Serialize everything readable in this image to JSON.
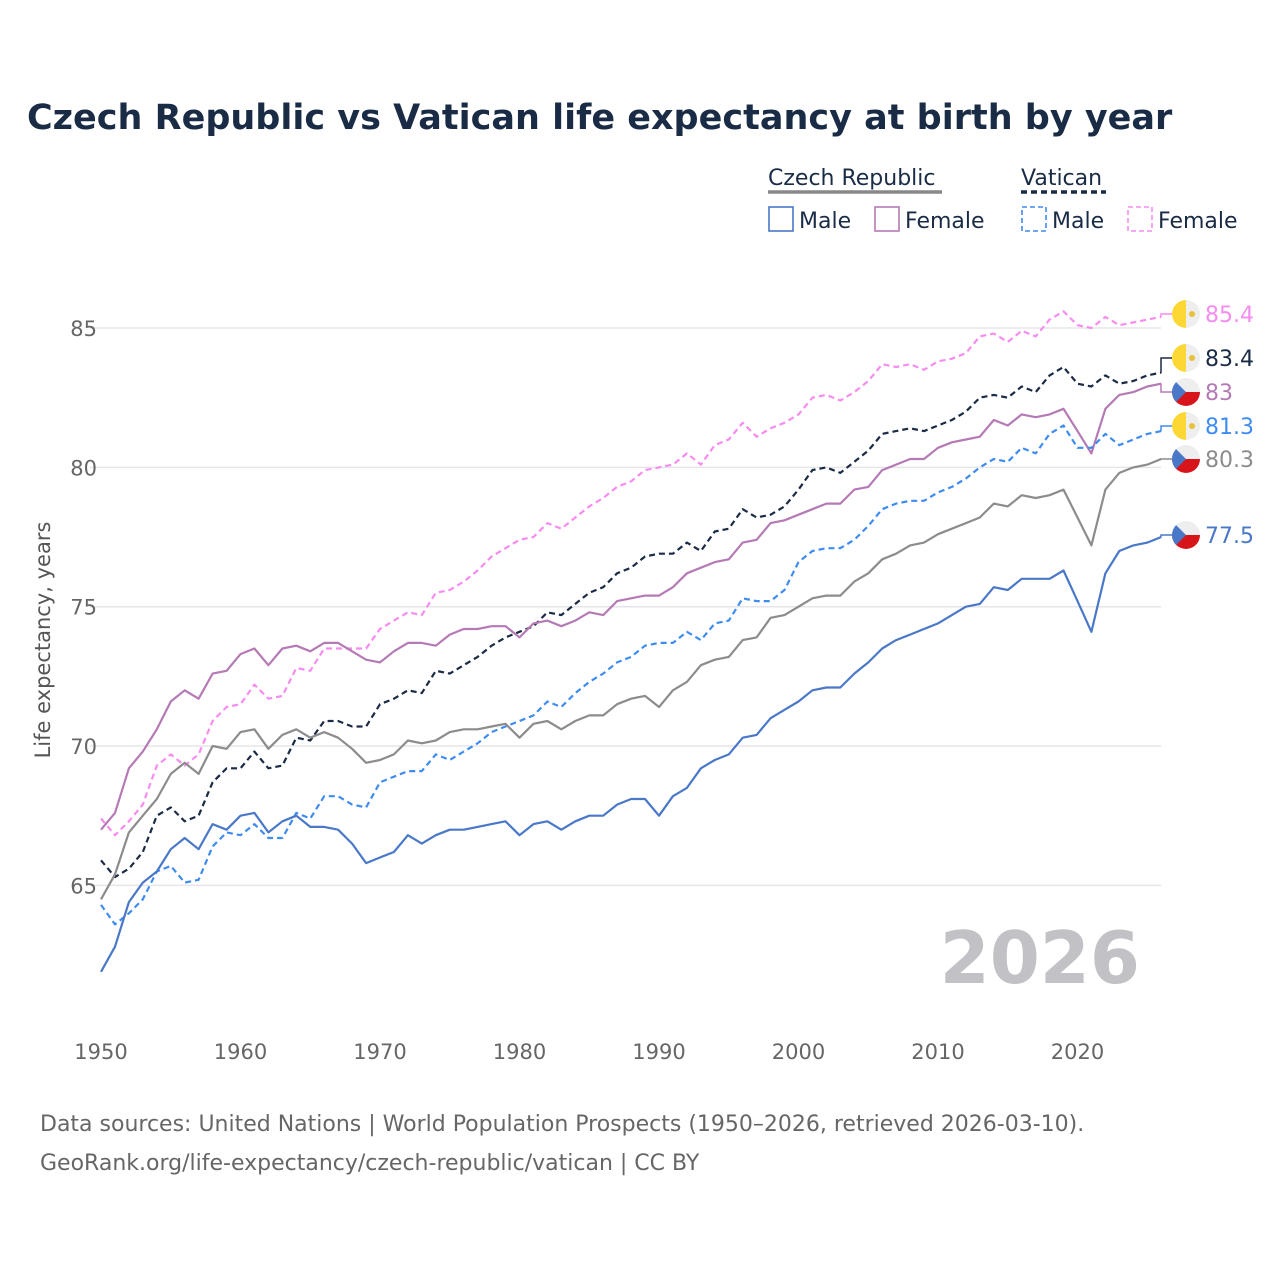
{
  "chart_data": {
    "type": "line",
    "title": "Czech Republic vs Vatican life expectancy at birth by year",
    "xlabel": "",
    "ylabel": "Life expectancy, years",
    "xlim": [
      1950,
      2026
    ],
    "ylim": [
      60.5,
      87
    ],
    "yticks": [
      65,
      70,
      75,
      80,
      85
    ],
    "xticks": [
      1950,
      1960,
      1970,
      1980,
      1990,
      2000,
      2010,
      2020
    ],
    "grid": true,
    "current_year_label": "2026",
    "legend": {
      "placement": "top-right",
      "groups": [
        {
          "name": "Czech Republic",
          "color": "#888888",
          "dash": false,
          "items": [
            {
              "label": "Male",
              "color": "#4a78c8"
            },
            {
              "label": "Female",
              "color": "#b57ab5"
            }
          ]
        },
        {
          "name": "Vatican",
          "color": "#1a2b45",
          "dash": true,
          "items": [
            {
              "label": "Male",
              "color": "#3f8cf0"
            },
            {
              "label": "Female",
              "color": "#f78cf0"
            }
          ]
        }
      ]
    },
    "start_year": 1950,
    "series": [
      {
        "name": "Vatican Female",
        "country": "vatican",
        "color": "#f78cf0",
        "dash": true,
        "end_label": "85.4",
        "values": [
          67.4,
          66.8,
          67.3,
          67.9,
          69.3,
          69.7,
          69.3,
          69.7,
          70.9,
          71.4,
          71.5,
          72.2,
          71.7,
          71.8,
          72.8,
          72.7,
          73.5,
          73.5,
          73.5,
          73.5,
          74.2,
          74.5,
          74.8,
          74.7,
          75.5,
          75.6,
          75.9,
          76.3,
          76.8,
          77.1,
          77.4,
          77.5,
          78.0,
          77.8,
          78.2,
          78.6,
          78.9,
          79.3,
          79.5,
          79.9,
          80.0,
          80.1,
          80.5,
          80.1,
          80.8,
          81.0,
          81.6,
          81.1,
          81.4,
          81.6,
          81.9,
          82.5,
          82.6,
          82.4,
          82.7,
          83.1,
          83.7,
          83.6,
          83.7,
          83.5,
          83.8,
          83.9,
          84.1,
          84.7,
          84.8,
          84.5,
          84.9,
          84.7,
          85.3,
          85.6,
          85.1,
          85.0,
          85.4,
          85.1,
          85.2,
          85.3,
          85.4
        ]
      },
      {
        "name": "Vatican",
        "country": "vatican",
        "color": "#1a2b45",
        "dash": true,
        "end_label": "83.4",
        "values": [
          65.9,
          65.3,
          65.6,
          66.2,
          67.5,
          67.8,
          67.3,
          67.5,
          68.7,
          69.2,
          69.2,
          69.8,
          69.2,
          69.3,
          70.3,
          70.2,
          70.9,
          70.9,
          70.7,
          70.7,
          71.5,
          71.7,
          72.0,
          71.9,
          72.7,
          72.6,
          72.9,
          73.2,
          73.6,
          73.9,
          74.1,
          74.3,
          74.8,
          74.7,
          75.1,
          75.5,
          75.7,
          76.2,
          76.4,
          76.8,
          76.9,
          76.9,
          77.3,
          77.0,
          77.7,
          77.8,
          78.5,
          78.2,
          78.3,
          78.6,
          79.2,
          79.9,
          80.0,
          79.8,
          80.2,
          80.6,
          81.2,
          81.3,
          81.4,
          81.3,
          81.5,
          81.7,
          82.0,
          82.5,
          82.6,
          82.5,
          82.9,
          82.7,
          83.3,
          83.6,
          83.0,
          82.9,
          83.3,
          83.0,
          83.1,
          83.3,
          83.4
        ]
      },
      {
        "name": "Czech Republic Female",
        "country": "czech",
        "color": "#b57ab5",
        "dash": false,
        "end_label": "83",
        "values": [
          67.0,
          67.6,
          69.2,
          69.8,
          70.6,
          71.6,
          72.0,
          71.7,
          72.6,
          72.7,
          73.3,
          73.5,
          72.9,
          73.5,
          73.6,
          73.4,
          73.7,
          73.7,
          73.4,
          73.1,
          73.0,
          73.4,
          73.7,
          73.7,
          73.6,
          74.0,
          74.2,
          74.2,
          74.3,
          74.3,
          73.9,
          74.4,
          74.5,
          74.3,
          74.5,
          74.8,
          74.7,
          75.2,
          75.3,
          75.4,
          75.4,
          75.7,
          76.2,
          76.4,
          76.6,
          76.7,
          77.3,
          77.4,
          78.0,
          78.1,
          78.3,
          78.5,
          78.7,
          78.7,
          79.2,
          79.3,
          79.9,
          80.1,
          80.3,
          80.3,
          80.7,
          80.9,
          81.0,
          81.1,
          81.7,
          81.5,
          81.9,
          81.8,
          81.9,
          82.1,
          81.3,
          80.5,
          82.1,
          82.6,
          82.7,
          82.9,
          83.0
        ]
      },
      {
        "name": "Vatican Male",
        "country": "vatican",
        "color": "#3f8cf0",
        "dash": true,
        "end_label": "81.3",
        "values": [
          64.3,
          63.6,
          64.0,
          64.5,
          65.5,
          65.7,
          65.1,
          65.2,
          66.4,
          66.9,
          66.8,
          67.2,
          66.7,
          66.7,
          67.6,
          67.4,
          68.2,
          68.2,
          67.9,
          67.8,
          68.7,
          68.9,
          69.1,
          69.1,
          69.7,
          69.5,
          69.8,
          70.1,
          70.5,
          70.7,
          70.9,
          71.1,
          71.6,
          71.4,
          71.9,
          72.3,
          72.6,
          73.0,
          73.2,
          73.6,
          73.7,
          73.7,
          74.1,
          73.8,
          74.4,
          74.5,
          75.3,
          75.2,
          75.2,
          75.6,
          76.6,
          77.0,
          77.1,
          77.1,
          77.4,
          77.9,
          78.5,
          78.7,
          78.8,
          78.8,
          79.1,
          79.3,
          79.6,
          80.0,
          80.3,
          80.2,
          80.7,
          80.5,
          81.2,
          81.5,
          80.7,
          80.7,
          81.2,
          80.8,
          81.0,
          81.2,
          81.3
        ]
      },
      {
        "name": "Czech Republic",
        "country": "czech",
        "color": "#8c8c8c",
        "dash": false,
        "end_label": "80.3",
        "values": [
          64.5,
          65.4,
          66.9,
          67.5,
          68.1,
          69.0,
          69.4,
          69.0,
          70.0,
          69.9,
          70.5,
          70.6,
          69.9,
          70.4,
          70.6,
          70.3,
          70.5,
          70.3,
          69.9,
          69.4,
          69.5,
          69.7,
          70.2,
          70.1,
          70.2,
          70.5,
          70.6,
          70.6,
          70.7,
          70.8,
          70.3,
          70.8,
          70.9,
          70.6,
          70.9,
          71.1,
          71.1,
          71.5,
          71.7,
          71.8,
          71.4,
          72.0,
          72.3,
          72.9,
          73.1,
          73.2,
          73.8,
          73.9,
          74.6,
          74.7,
          75.0,
          75.3,
          75.4,
          75.4,
          75.9,
          76.2,
          76.7,
          76.9,
          77.2,
          77.3,
          77.6,
          77.8,
          78.0,
          78.2,
          78.7,
          78.6,
          79.0,
          78.9,
          79.0,
          79.2,
          78.2,
          77.2,
          79.2,
          79.8,
          80.0,
          80.1,
          80.3
        ]
      },
      {
        "name": "Czech Republic Male",
        "country": "czech",
        "color": "#4a78c8",
        "dash": false,
        "end_label": "77.5",
        "values": [
          61.9,
          62.8,
          64.4,
          65.1,
          65.5,
          66.3,
          66.7,
          66.3,
          67.2,
          67.0,
          67.5,
          67.6,
          66.9,
          67.3,
          67.5,
          67.1,
          67.1,
          67.0,
          66.5,
          65.8,
          66.0,
          66.2,
          66.8,
          66.5,
          66.8,
          67.0,
          67.0,
          67.1,
          67.2,
          67.3,
          66.8,
          67.2,
          67.3,
          67.0,
          67.3,
          67.5,
          67.5,
          67.9,
          68.1,
          68.1,
          67.5,
          68.2,
          68.5,
          69.2,
          69.5,
          69.7,
          70.3,
          70.4,
          71.0,
          71.3,
          71.6,
          72.0,
          72.1,
          72.1,
          72.6,
          73.0,
          73.5,
          73.8,
          74.0,
          74.2,
          74.4,
          74.7,
          75.0,
          75.1,
          75.7,
          75.6,
          76.0,
          76.0,
          76.0,
          76.3,
          75.2,
          74.1,
          76.2,
          77.0,
          77.2,
          77.3,
          77.5
        ]
      }
    ]
  },
  "footer": {
    "line1": "Data sources: United Nations | World Population Prospects (1950–2026, retrieved 2026-03-10).",
    "line2": "GeoRank.org/life-expectancy/czech-republic/vatican | CC BY"
  }
}
